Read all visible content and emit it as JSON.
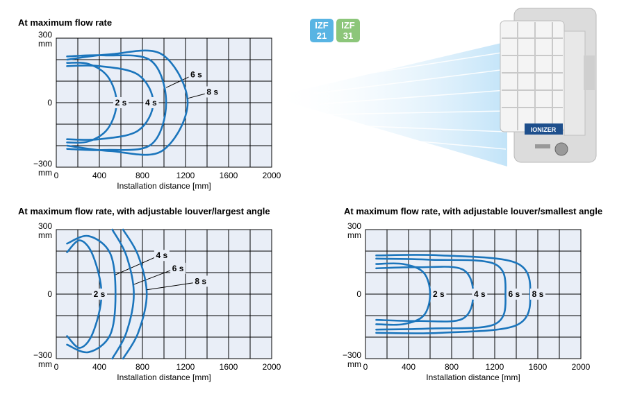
{
  "badges": [
    {
      "line1": "IZF",
      "line2": "21",
      "color": "#58b4e3"
    },
    {
      "line1": "IZF",
      "line2": "31",
      "color": "#8cc67a"
    }
  ],
  "product_label": "IONIZER",
  "colors": {
    "curve": "#1b75bc",
    "grid_fill": "#e9eef7",
    "grid_line": "#000000"
  },
  "chart_data": [
    {
      "type": "line",
      "title": "At maximum flow rate",
      "xlabel": "Installation distance [mm]",
      "xlim": [
        0,
        2000
      ],
      "ylim": [
        -300,
        300
      ],
      "x_ticks": [
        "0",
        "400",
        "800",
        "1200",
        "1600",
        "2000"
      ],
      "y_ticks": [
        {
          "value": 300,
          "l1": "300",
          "l2": "mm"
        },
        {
          "value": 0,
          "l1": "0",
          "l2": ""
        },
        {
          "value": -300,
          "l1": "−300",
          "l2": "mm"
        }
      ],
      "grid": true,
      "series": [
        {
          "name": "2 s",
          "points": [
            [
              100,
              185
            ],
            [
              300,
              180
            ],
            [
              480,
              120
            ],
            [
              560,
              0
            ],
            [
              480,
              -120
            ],
            [
              300,
              -180
            ],
            [
              100,
              -185
            ]
          ],
          "label_at": [
            600,
            0
          ]
        },
        {
          "name": "4 s",
          "points": [
            [
              100,
              170
            ],
            [
              400,
              170
            ],
            [
              760,
              130
            ],
            [
              900,
              0
            ],
            [
              760,
              -130
            ],
            [
              400,
              -170
            ],
            [
              100,
              -170
            ]
          ],
          "label_at": [
            880,
            0
          ]
        },
        {
          "name": "6 s",
          "points": [
            [
              100,
              215
            ],
            [
              450,
              220
            ],
            [
              880,
              195
            ],
            [
              1020,
              0
            ],
            [
              880,
              -195
            ],
            [
              450,
              -220
            ],
            [
              100,
              -215
            ]
          ],
          "label_at": [
            1300,
            130
          ],
          "leader_to": [
            1020,
            70
          ]
        },
        {
          "name": "8 s",
          "points": [
            [
              100,
              200
            ],
            [
              500,
              225
            ],
            [
              980,
              225
            ],
            [
              1220,
              0
            ],
            [
              980,
              -225
            ],
            [
              500,
              -225
            ],
            [
              100,
              -200
            ]
          ],
          "label_at": [
            1450,
            50
          ],
          "leader_to": [
            1220,
            20
          ]
        }
      ]
    },
    {
      "type": "line",
      "title": "At maximum flow rate, with adjustable louver/largest angle",
      "xlabel": "Installation distance [mm]",
      "xlim": [
        0,
        2000
      ],
      "ylim": [
        -300,
        300
      ],
      "x_ticks": [
        "0",
        "400",
        "800",
        "1200",
        "1600",
        "2000"
      ],
      "y_ticks": [
        {
          "value": 300,
          "l1": "300",
          "l2": "mm"
        },
        {
          "value": 0,
          "l1": "0",
          "l2": ""
        },
        {
          "value": -300,
          "l1": "−300",
          "l2": "mm"
        }
      ],
      "grid": true,
      "series": [
        {
          "name": "2 s",
          "points": [
            [
              100,
              195
            ],
            [
              220,
              250
            ],
            [
              340,
              180
            ],
            [
              420,
              0
            ],
            [
              340,
              -180
            ],
            [
              220,
              -250
            ],
            [
              100,
              -195
            ]
          ],
          "label_at": [
            400,
            0
          ]
        },
        {
          "name": "4 s",
          "points": [
            [
              100,
              235
            ],
            [
              300,
              270
            ],
            [
              500,
              190
            ],
            [
              550,
              0
            ],
            [
              500,
              -190
            ],
            [
              300,
              -270
            ],
            [
              100,
              -235
            ]
          ],
          "label_at": [
            980,
            180
          ],
          "leader_to": [
            550,
            90
          ]
        },
        {
          "name": "6 s",
          "points": [
            [
              520,
              300
            ],
            [
              650,
              180
            ],
            [
              720,
              0
            ],
            [
              650,
              -180
            ],
            [
              520,
              -300
            ]
          ],
          "label_at": [
            1130,
            120
          ],
          "leader_to": [
            720,
            45
          ]
        },
        {
          "name": "8 s",
          "points": [
            [
              620,
              300
            ],
            [
              760,
              180
            ],
            [
              840,
              0
            ],
            [
              760,
              -180
            ],
            [
              620,
              -300
            ]
          ],
          "label_at": [
            1340,
            60
          ],
          "leader_to": [
            840,
            20
          ]
        }
      ]
    },
    {
      "type": "line",
      "title": "At maximum flow rate, with adjustable louver/smallest angle",
      "xlabel": "Installation distance [mm]",
      "xlim": [
        0,
        2000
      ],
      "ylim": [
        -300,
        300
      ],
      "x_ticks": [
        "0",
        "400",
        "800",
        "1200",
        "1600",
        "2000"
      ],
      "y_ticks": [
        {
          "value": 300,
          "l1": "300",
          "l2": "mm"
        },
        {
          "value": 0,
          "l1": "0",
          "l2": ""
        },
        {
          "value": -300,
          "l1": "−300",
          "l2": "mm"
        }
      ],
      "grid": true,
      "series": [
        {
          "name": "2 s",
          "points": [
            [
              100,
              140
            ],
            [
              350,
              140
            ],
            [
              540,
              100
            ],
            [
              600,
              0
            ],
            [
              540,
              -100
            ],
            [
              350,
              -140
            ],
            [
              100,
              -140
            ]
          ],
          "label_at": [
            680,
            0
          ]
        },
        {
          "name": "4 s",
          "points": [
            [
              100,
              120
            ],
            [
              500,
              125
            ],
            [
              900,
              115
            ],
            [
              1000,
              0
            ],
            [
              900,
              -115
            ],
            [
              500,
              -125
            ],
            [
              100,
              -120
            ]
          ],
          "label_at": [
            1060,
            0
          ]
        },
        {
          "name": "6 s",
          "points": [
            [
              100,
              165
            ],
            [
              600,
              160
            ],
            [
              1200,
              140
            ],
            [
              1300,
              0
            ],
            [
              1200,
              -140
            ],
            [
              600,
              -160
            ],
            [
              100,
              -165
            ]
          ],
          "label_at": [
            1380,
            0
          ]
        },
        {
          "name": "8 s",
          "points": [
            [
              100,
              180
            ],
            [
              700,
              180
            ],
            [
              1400,
              145
            ],
            [
              1530,
              0
            ],
            [
              1400,
              -145
            ],
            [
              700,
              -180
            ],
            [
              100,
              -180
            ]
          ],
          "label_at": [
            1600,
            0
          ]
        }
      ]
    }
  ]
}
